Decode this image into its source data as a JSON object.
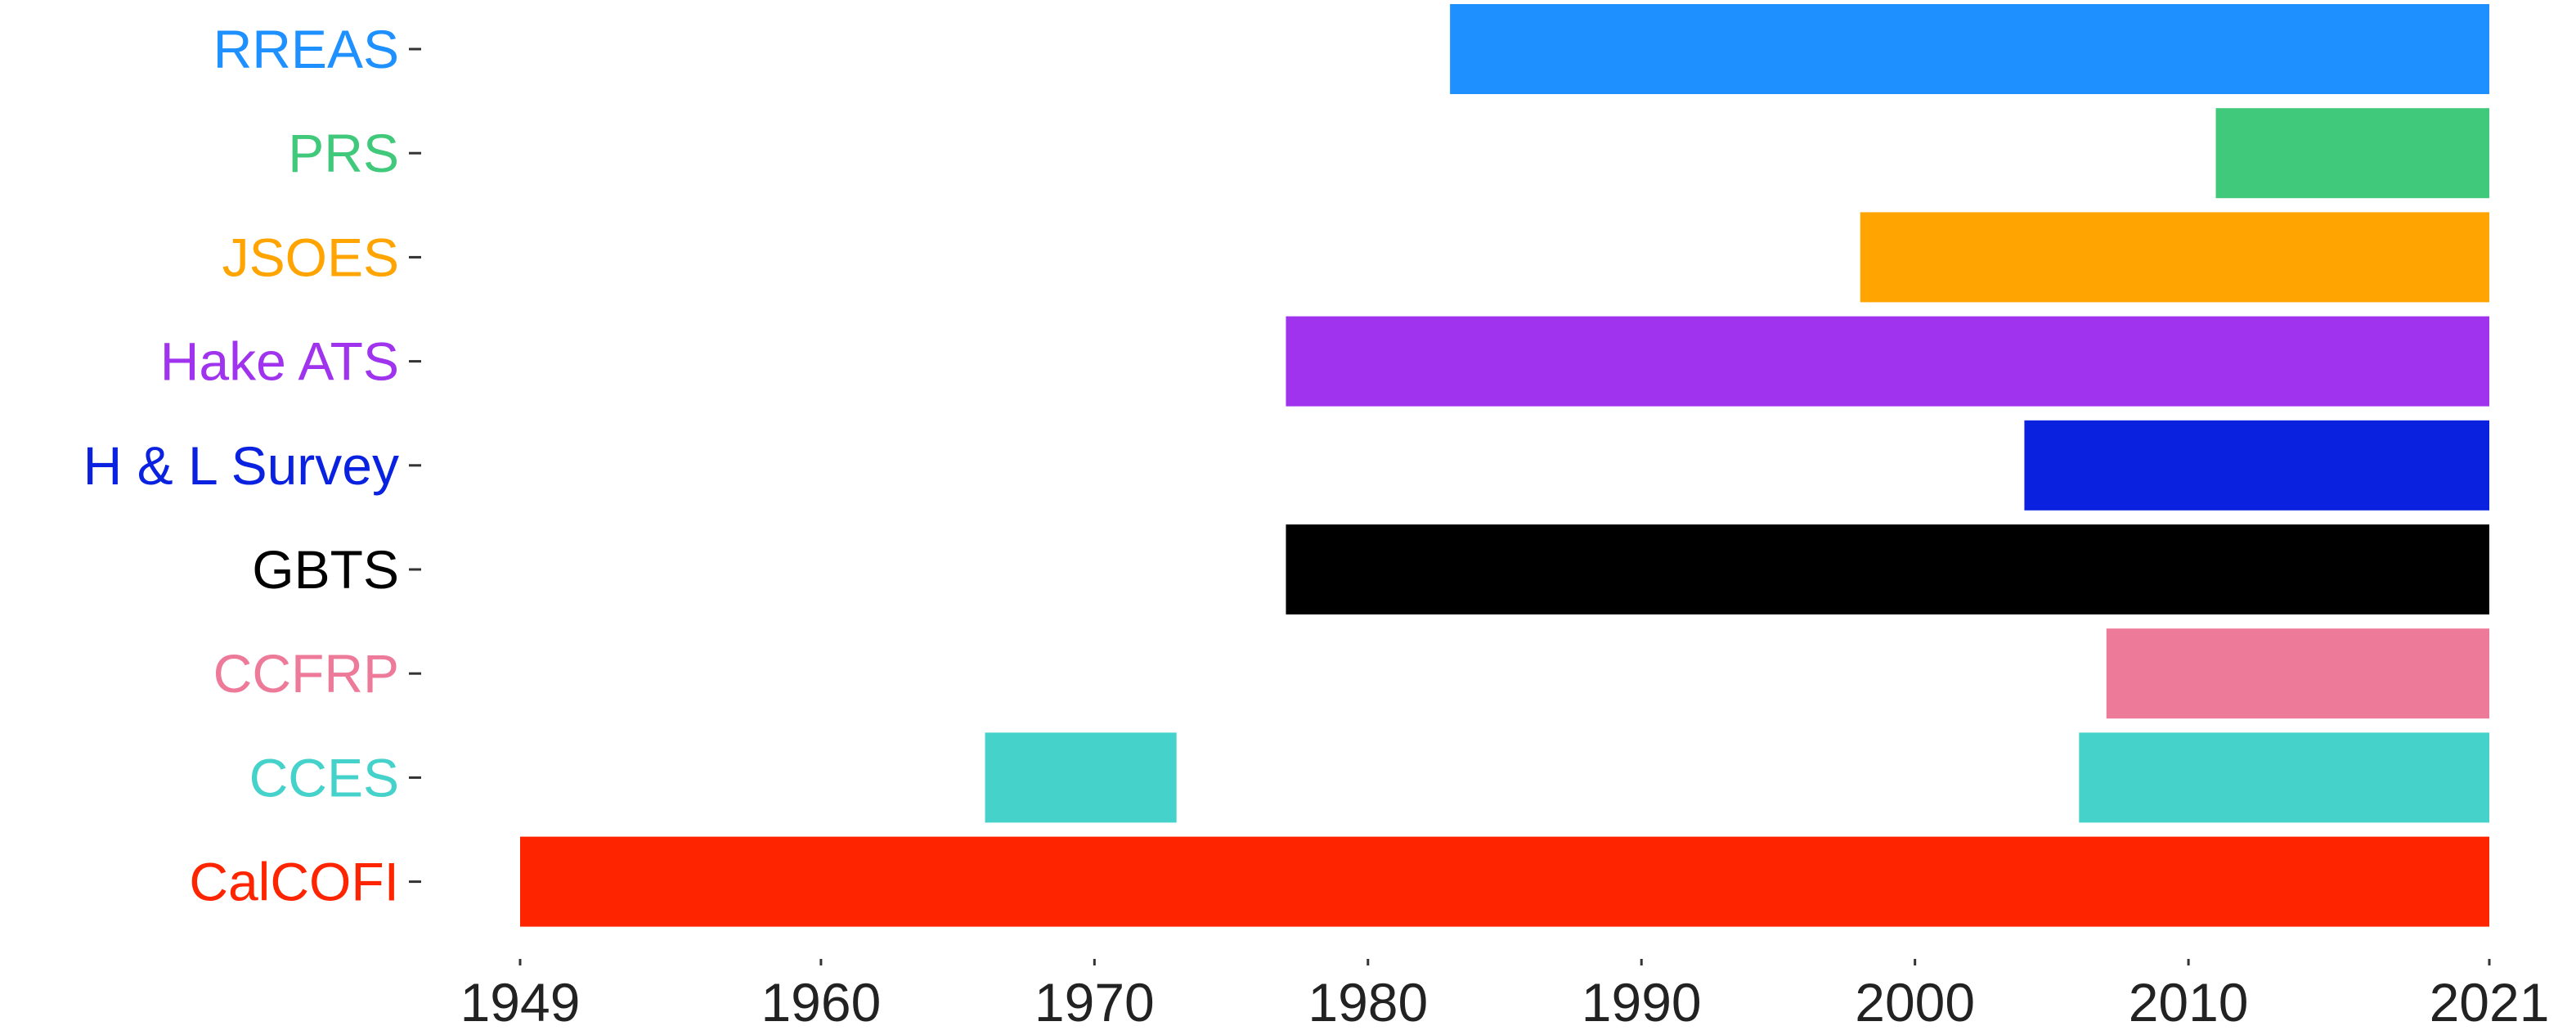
{
  "chart_data": {
    "type": "bar",
    "orientation": "horizontal-timeline",
    "title": "",
    "xlabel": "",
    "ylabel": "",
    "xlim": [
      1949,
      2021
    ],
    "x_ticks": [
      "1949",
      "1960",
      "1970",
      "1980",
      "1990",
      "2000",
      "2010",
      "2021"
    ],
    "grid": false,
    "legend": "none",
    "series": [
      {
        "label": "RREAS",
        "color": "#1E90FF",
        "segments": [
          [
            1983,
            2021
          ]
        ]
      },
      {
        "label": "PRS",
        "color": "#41C97B",
        "segments": [
          [
            2011,
            2021
          ]
        ]
      },
      {
        "label": "JSOES",
        "color": "#FFA400",
        "segments": [
          [
            1998,
            2021
          ]
        ]
      },
      {
        "label": "Hake ATS",
        "color": "#A033EE",
        "segments": [
          [
            1977,
            2021
          ]
        ]
      },
      {
        "label": "H & L Survey",
        "color": "#0A22E0",
        "segments": [
          [
            2004,
            2021
          ]
        ]
      },
      {
        "label": "GBTS",
        "color": "#000000",
        "segments": [
          [
            1977,
            2021
          ]
        ]
      },
      {
        "label": "CCFRP",
        "color": "#EE7A9A",
        "segments": [
          [
            2007,
            2021
          ]
        ]
      },
      {
        "label": "CCES",
        "color": "#45D2CA",
        "segments": [
          [
            1966,
            1973
          ],
          [
            2006,
            2021
          ]
        ]
      },
      {
        "label": "CalCOFI",
        "color": "#FF2400",
        "segments": [
          [
            1949,
            2021
          ]
        ]
      }
    ]
  }
}
